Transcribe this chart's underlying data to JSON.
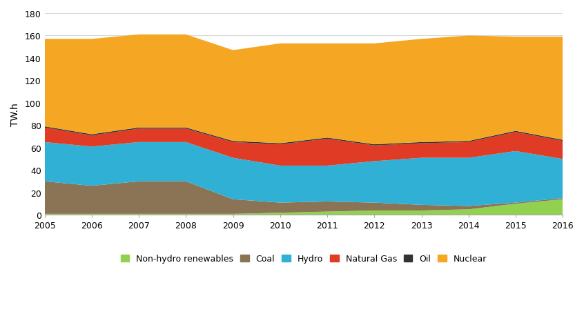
{
  "years": [
    2005,
    2006,
    2007,
    2008,
    2009,
    2010,
    2011,
    2012,
    2013,
    2014,
    2015,
    2016
  ],
  "non_hydro_renewables": [
    1,
    1,
    1,
    1,
    1,
    2,
    3,
    4,
    4,
    5,
    10,
    14
  ],
  "coal": [
    29,
    25,
    29,
    29,
    13,
    9,
    9,
    7,
    5,
    3,
    1,
    1
  ],
  "hydro": [
    35,
    35,
    35,
    35,
    37,
    33,
    32,
    37,
    42,
    43,
    46,
    35
  ],
  "natural_gas": [
    13,
    10,
    12,
    12,
    14,
    19,
    24,
    14,
    13,
    14,
    17,
    16
  ],
  "oil": [
    1,
    1,
    1,
    1,
    1,
    1,
    1,
    1,
    1,
    1,
    1,
    1
  ],
  "nuclear": [
    78,
    85,
    83,
    83,
    81,
    89,
    84,
    90,
    92,
    94,
    84,
    92
  ],
  "colors": {
    "non_hydro_renewables": "#92d050",
    "coal": "#8b7355",
    "hydro": "#31b0d5",
    "natural_gas": "#e03b24",
    "oil": "#333333",
    "nuclear": "#f5a623"
  },
  "labels": {
    "non_hydro_renewables": "Non-hydro renewables",
    "coal": "Coal",
    "hydro": "Hydro",
    "natural_gas": "Natural Gas",
    "oil": "Oil",
    "nuclear": "Nuclear"
  },
  "ylabel": "TW.h",
  "ylim": [
    0,
    180
  ],
  "yticks": [
    0,
    20,
    40,
    60,
    80,
    100,
    120,
    140,
    160,
    180
  ],
  "background_color": "#ffffff",
  "grid_color": "#d8d8d8"
}
